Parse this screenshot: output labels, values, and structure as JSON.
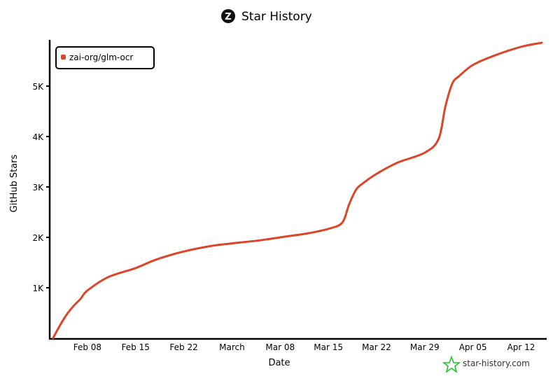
{
  "chart_data": {
    "type": "line",
    "title": "Star History",
    "xlabel": "Date",
    "ylabel": "GitHub Stars",
    "xlim": [
      "02-03",
      "04-15"
    ],
    "ylim": [
      0,
      5900
    ],
    "grid": false,
    "legend": "top-left",
    "x_ticks": [
      {
        "date": "02-08",
        "label": "Feb 08"
      },
      {
        "date": "02-15",
        "label": "Feb 15"
      },
      {
        "date": "02-22",
        "label": "Feb 22"
      },
      {
        "date": "03-01",
        "label": "March"
      },
      {
        "date": "03-08",
        "label": "Mar 08"
      },
      {
        "date": "03-15",
        "label": "Mar 15"
      },
      {
        "date": "03-22",
        "label": "Mar 22"
      },
      {
        "date": "03-29",
        "label": "Mar 29"
      },
      {
        "date": "04-05",
        "label": "Apr 05"
      },
      {
        "date": "04-12",
        "label": "Apr 12"
      }
    ],
    "y_ticks": [
      {
        "value": 1000,
        "label": "1K"
      },
      {
        "value": 2000,
        "label": "2K"
      },
      {
        "value": 3000,
        "label": "3K"
      },
      {
        "value": 4000,
        "label": "4K"
      },
      {
        "value": 5000,
        "label": "5K"
      }
    ],
    "series": [
      {
        "name": "zai-org/glm-ocr",
        "color": "#dd4528",
        "x": [
          "02-03",
          "02-04",
          "02-05",
          "02-06",
          "02-07",
          "02-08",
          "02-11",
          "02-15",
          "02-18",
          "02-22",
          "02-26",
          "03-01",
          "03-05",
          "03-08",
          "03-12",
          "03-15",
          "03-17",
          "03-18",
          "03-19",
          "03-20",
          "03-22",
          "03-25",
          "03-29",
          "03-31",
          "04-01",
          "04-02",
          "04-03",
          "04-05",
          "04-08",
          "04-12",
          "04-15"
        ],
        "y": [
          0,
          250,
          470,
          640,
          780,
          945,
          1210,
          1390,
          1560,
          1720,
          1830,
          1880,
          1940,
          2000,
          2080,
          2170,
          2290,
          2650,
          2940,
          3070,
          3260,
          3480,
          3680,
          3950,
          4600,
          5050,
          5200,
          5420,
          5600,
          5780,
          5860
        ]
      }
    ]
  },
  "watermark": {
    "text": "star-history.com",
    "icon": "star-icon",
    "color": "#22c02a"
  },
  "title_icon": "z-logo-icon"
}
